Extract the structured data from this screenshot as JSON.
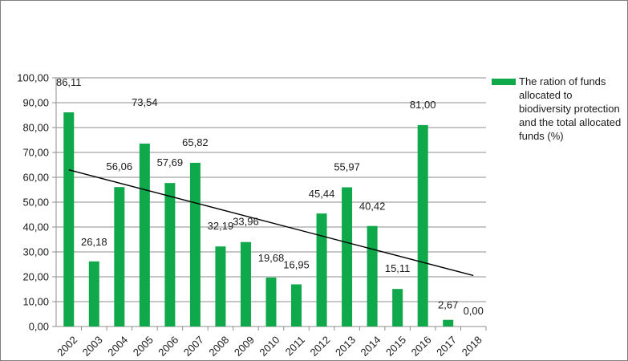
{
  "chart_data": {
    "type": "bar",
    "categories": [
      "2002",
      "2003",
      "2004",
      "2005",
      "2006",
      "2007",
      "2008",
      "2009",
      "2010",
      "2011",
      "2012",
      "2013",
      "2014",
      "2015",
      "2016",
      "2017",
      "2018"
    ],
    "series": [
      {
        "name": "The ration of funds allocated to biodiversity protection and the total allocated funds (%)",
        "values": [
          86.11,
          26.18,
          56.06,
          73.54,
          57.69,
          65.82,
          32.19,
          33.96,
          19.68,
          16.95,
          45.44,
          55.97,
          40.42,
          15.11,
          81.0,
          2.67,
          0.0
        ]
      }
    ],
    "data_labels": [
      "86,11",
      "26,18",
      "56,06",
      "73,54",
      "57,69",
      "65,82",
      "32,19",
      "33,96",
      "19,68",
      "16,95",
      "45,44",
      "55,97",
      "40,42",
      "15,11",
      "81,00",
      "2,67",
      "0,00"
    ],
    "yticks": [
      "0,00",
      "10,00",
      "20,00",
      "30,00",
      "40,00",
      "50,00",
      "60,00",
      "70,00",
      "80,00",
      "90,00",
      "100,00"
    ],
    "ylim": [
      0,
      100
    ],
    "trendline": {
      "type": "linear",
      "start_value": 63.0,
      "end_value": 20.5
    },
    "grid": true,
    "legend_position": "right",
    "bar_color": "#0fa84a",
    "trend_color": "#000000",
    "grid_color": "#8c8c8c"
  }
}
